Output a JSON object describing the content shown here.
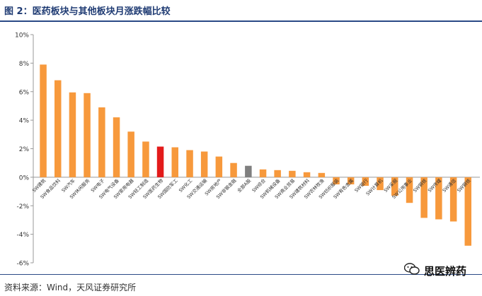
{
  "header": {
    "title": "图 2：医药板块与其他板块月涨跌幅比较"
  },
  "footer": {
    "source": "资料来源：Wind，天风证券研究所"
  },
  "watermark": {
    "text": "思医辨药",
    "icon": "wechat-icon"
  },
  "colors": {
    "bar": "#f7993c",
    "highlight": "#e31b1b",
    "index": "#7f7f7f",
    "accent": "#2a4a86"
  },
  "chart_data": {
    "type": "bar",
    "title": "",
    "xlabel": "",
    "ylabel": "",
    "ylim": [
      -6,
      10
    ],
    "yticks": [
      10,
      8,
      6,
      4,
      2,
      0,
      -2,
      -4,
      -6
    ],
    "ytick_labels": [
      "10%",
      "8%",
      "6%",
      "4%",
      "2%",
      "0%",
      "-2%",
      "-4%",
      "-6%"
    ],
    "grid": false,
    "categories": [
      "SW建筑",
      "SW食品饮料",
      "SW汽车",
      "SW休闲服务",
      "SW电子",
      "SW电气设备",
      "SW家用电器",
      "SW轻工制造",
      "SW医药生物",
      "SW国防军工",
      "SW化工",
      "SW交通运输",
      "SW房地产",
      "SW非银金融",
      "全部A股",
      "SW综合",
      "SW机械设备",
      "SW商业贸易",
      "SW建筑材料",
      "SW农林牧渔",
      "SW纺织服装",
      "SW有色金属",
      "SW银行",
      "SW计算机",
      "SW采掘",
      "SW公用事业",
      "SW钢铁",
      "SW传媒",
      "SW通信",
      "SW钢铁"
    ],
    "category_labels": [
      "SW建筑",
      "SW食品饮料",
      "SW汽车",
      "SW休闲服务",
      "SW电子",
      "SW电气设备",
      "SW家用电器",
      "SW轻工制造",
      "SW医药生物",
      "SW国防军工",
      "SW化工",
      "SW交通运输",
      "SW房地产",
      "SW非银金融",
      "全部A股",
      "SW综合",
      "SW机械设备",
      "SW商业贸易",
      "SW建筑材料",
      "SW农林牧渔",
      "SW纺织服装",
      "SW有色金属",
      "SW银行",
      "SW计算机",
      "SW采掘",
      "SW公用事业",
      "SW钢铁",
      "SW传媒",
      "SW通信",
      "SW钢铁"
    ],
    "values": [
      7.9,
      6.8,
      5.95,
      5.9,
      4.9,
      4.2,
      3.2,
      2.5,
      2.15,
      2.1,
      1.9,
      1.8,
      1.45,
      1.0,
      0.8,
      0.55,
      0.5,
      0.45,
      0.35,
      0.3,
      -0.5,
      -0.5,
      -0.6,
      -0.9,
      -1.3,
      -1.8,
      -2.85,
      -2.95,
      -3.1,
      -4.8
    ],
    "highlight_index": 8,
    "index_index": 14
  }
}
